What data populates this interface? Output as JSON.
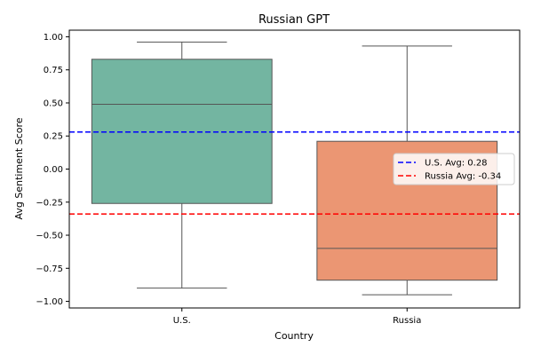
{
  "chart_data": {
    "type": "box",
    "title": "Russian GPT",
    "xlabel": "Country",
    "ylabel": "Avg Sentiment Score",
    "ylim": [
      -1.05,
      1.05
    ],
    "yticks": [
      1.0,
      0.75,
      0.5,
      0.25,
      0.0,
      -0.25,
      -0.5,
      -0.75,
      -1.0
    ],
    "ytick_labels": [
      "1.00",
      "0.75",
      "0.50",
      "0.25",
      "0.00",
      "−0.25",
      "−0.50",
      "−0.75",
      "−1.00"
    ],
    "categories": [
      "U.S.",
      "Russia"
    ],
    "boxes": [
      {
        "category": "U.S.",
        "whisker_low": -0.9,
        "q1": -0.26,
        "median": 0.49,
        "q3": 0.83,
        "whisker_high": 0.96,
        "color": "#73b5a1"
      },
      {
        "category": "Russia",
        "whisker_low": -0.95,
        "q1": -0.84,
        "median": -0.6,
        "q3": 0.21,
        "whisker_high": 0.93,
        "color": "#eb9673"
      }
    ],
    "reference_lines": [
      {
        "label": "U.S. Avg: 0.28",
        "value": 0.28,
        "color": "#0000ff"
      },
      {
        "label": "Russia Avg: -0.34",
        "value": -0.34,
        "color": "#ff0000"
      }
    ],
    "legend_position": "center-right",
    "grid": false
  }
}
